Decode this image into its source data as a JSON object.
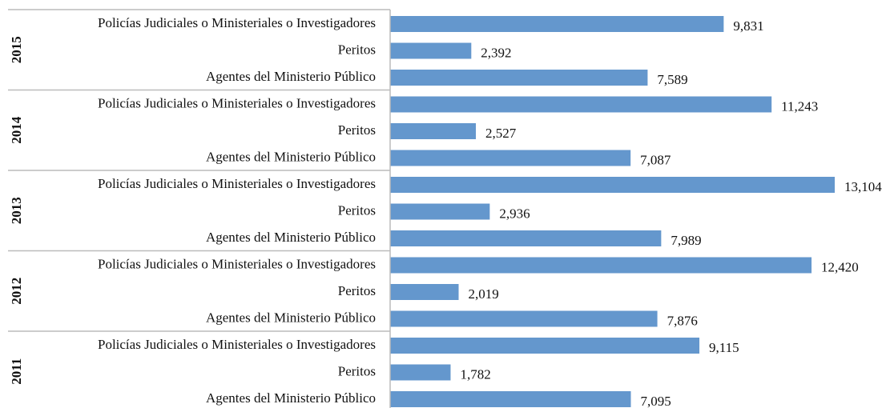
{
  "chart_data": {
    "type": "bar",
    "color": "#6497cd",
    "groups": [
      {
        "name": "2015",
        "categories": [
          "Policías Judiciales o Ministeriales o Investigadores",
          "Peritos",
          "Agentes del Ministerio Público"
        ],
        "values": [
          9831,
          2392,
          7589
        ],
        "value_labels": [
          "9,831",
          "2,392",
          "7,589"
        ]
      },
      {
        "name": "2014",
        "categories": [
          "Policías Judiciales o Ministeriales o Investigadores",
          "Peritos",
          "Agentes del Ministerio Público"
        ],
        "values": [
          11243,
          2527,
          7087
        ],
        "value_labels": [
          "11,243",
          "2,527",
          "7,087"
        ]
      },
      {
        "name": "2013",
        "categories": [
          "Policías Judiciales o Ministeriales o Investigadores",
          "Peritos",
          "Agentes del Ministerio Público"
        ],
        "values": [
          13104,
          2936,
          7989
        ],
        "value_labels": [
          "13,104",
          "2,936",
          "7,989"
        ]
      },
      {
        "name": "2012",
        "categories": [
          "Policías Judiciales o Ministeriales o Investigadores",
          "Peritos",
          "Agentes del Ministerio Público"
        ],
        "values": [
          12420,
          2019,
          7876
        ],
        "value_labels": [
          "12,420",
          "2,019",
          "7,876"
        ]
      },
      {
        "name": "2011",
        "categories": [
          "Policías Judiciales o Ministeriales o Investigadores",
          "Peritos",
          "Agentes del Ministerio Público"
        ],
        "values": [
          9115,
          1782,
          7095
        ],
        "value_labels": [
          "9,115",
          "1,782",
          "7,095"
        ]
      }
    ]
  }
}
